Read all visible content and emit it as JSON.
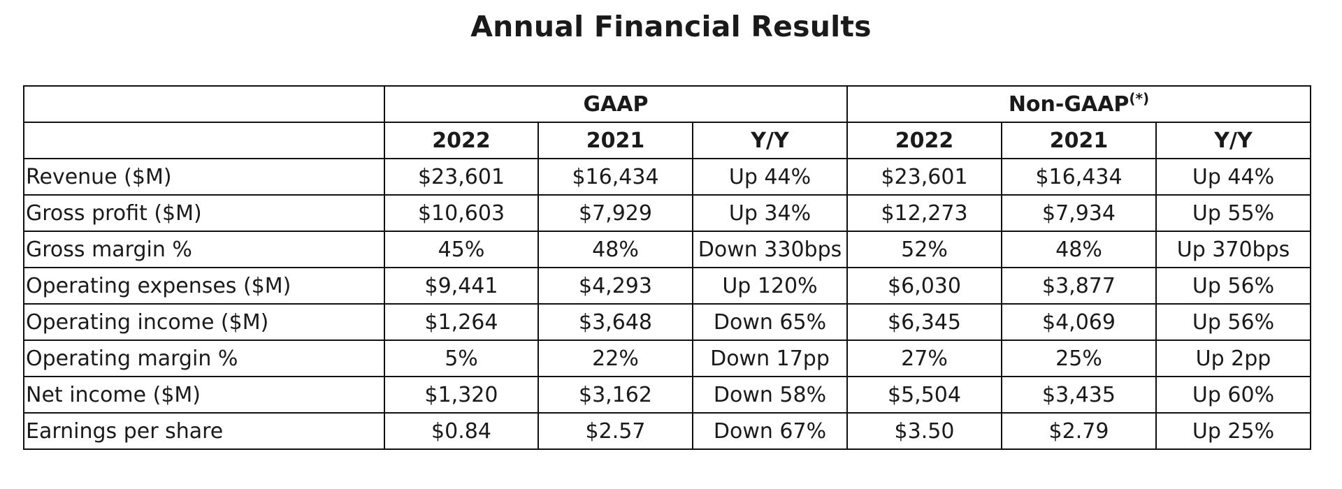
{
  "title": "Annual Financial Results",
  "groups": {
    "gaap": "GAAP",
    "nongaap": "Non-GAAP",
    "nongaap_note": "(*)"
  },
  "columns": [
    "2022",
    "2021",
    "Y/Y",
    "2022",
    "2021",
    "Y/Y"
  ],
  "rows": [
    {
      "label": "Revenue ($M)",
      "values": [
        "$23,601",
        "$16,434",
        "Up 44%",
        "$23,601",
        "$16,434",
        "Up 44%"
      ]
    },
    {
      "label": "Gross profit ($M)",
      "values": [
        "$10,603",
        "$7,929",
        "Up 34%",
        "$12,273",
        "$7,934",
        "Up 55%"
      ]
    },
    {
      "label": "Gross margin %",
      "values": [
        "45%",
        "48%",
        "Down 330bps",
        "52%",
        "48%",
        "Up 370bps"
      ]
    },
    {
      "label": "Operating expenses ($M)",
      "values": [
        "$9,441",
        "$4,293",
        "Up 120%",
        "$6,030",
        "$3,877",
        "Up 56%"
      ]
    },
    {
      "label": "Operating income ($M)",
      "values": [
        "$1,264",
        "$3,648",
        "Down 65%",
        "$6,345",
        "$4,069",
        "Up 56%"
      ]
    },
    {
      "label": "Operating margin %",
      "values": [
        "5%",
        "22%",
        "Down 17pp",
        "27%",
        "25%",
        "Up 2pp"
      ]
    },
    {
      "label": "Net income ($M)",
      "values": [
        "$1,320",
        "$3,162",
        "Down 58%",
        "$5,504",
        "$3,435",
        "Up 60%"
      ]
    },
    {
      "label": "Earnings per share",
      "values": [
        "$0.84",
        "$2.57",
        "Down 67%",
        "$3.50",
        "$2.79",
        "Up 25%"
      ]
    }
  ]
}
